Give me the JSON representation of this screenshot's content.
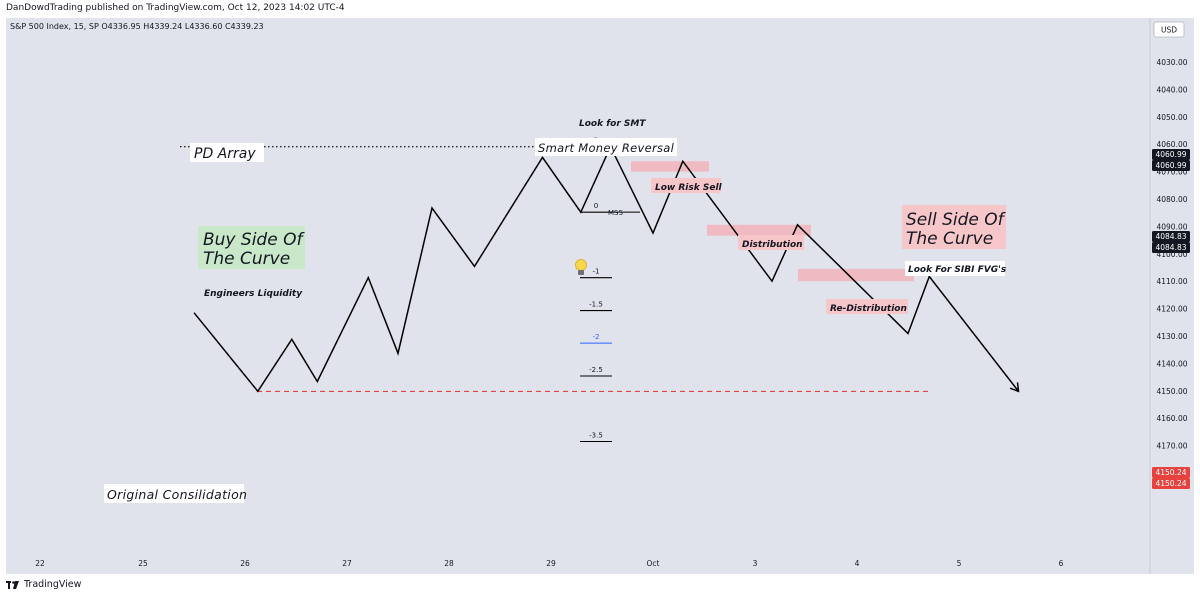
{
  "header": {
    "publisher": "DanDowdTrading published on TradingView.com, Oct 12, 2023 14:02 UTC-4",
    "symbol_line": "S&P 500 Index, 15, SP  O4336.95  H4339.24  L4336.60  C4339.23",
    "currency": "USD"
  },
  "footer": {
    "brand": "TradingView"
  },
  "colors": {
    "plot_bg": "#e0e3eb",
    "line": "#000000",
    "zone": "#f2b3bb",
    "red": "#e8423f",
    "green_box": "#c9e8c9",
    "pink_box": "#f7c6c9",
    "price_tag": "#131722",
    "blue": "#2962ff"
  },
  "chart_data": {
    "type": "line",
    "x_ticks": [
      "22",
      "25",
      "26",
      "27",
      "28",
      "29",
      "Oct",
      "3",
      "4",
      "5",
      "6"
    ],
    "y_ticks": [
      "4030.00",
      "4040.00",
      "4050.00",
      "4060.00",
      "4070.00",
      "4080.00",
      "4090.00",
      "4100.00",
      "4110.00",
      "4120.00",
      "4130.00",
      "4140.00",
      "4150.00",
      "4160.00",
      "4170.00"
    ],
    "y_axis_note": "inverted price scale (higher values lower on chart)",
    "ylim": [
      4025,
      4175
    ],
    "path": [
      [
        "Sep 25 12:00",
        4121.5
      ],
      [
        "Sep 26 03:00",
        4150.2
      ],
      [
        "Sep 26 11:00",
        4131.2
      ],
      [
        "Sep 26 17:00",
        4146.6
      ],
      [
        "Sep 27 05:00",
        4108.7
      ],
      [
        "Sep 27 12:00",
        4136.3
      ],
      [
        "Sep 27 20:00",
        4083.3
      ],
      [
        "Sep 28 06:00",
        4104.6
      ],
      [
        "Sep 28 22:00",
        4064.8
      ],
      [
        "Sep 29 07:00",
        4084.8
      ],
      [
        "Sep 29 14:00",
        4060.9
      ],
      [
        "Oct 1 00:00",
        4092.4
      ],
      [
        "Oct 1 07:00",
        4066.2
      ],
      [
        "Oct 2 04:00",
        4110.0
      ],
      [
        "Oct 2 10:00",
        4089.4
      ],
      [
        "Oct 3 12:00",
        4129.1
      ],
      [
        "Oct 3 17:00",
        4108.3
      ],
      [
        "Oct 4 14:00",
        4150.2
      ]
    ],
    "price_tags": [
      {
        "label": "4060.99",
        "value": 4060.99,
        "style": "dark"
      },
      {
        "label": "4060.99",
        "value": 4060.99,
        "style": "dark"
      },
      {
        "label": "4084.83",
        "value": 4084.83,
        "style": "dark"
      },
      {
        "label": "4084.83",
        "value": 4084.83,
        "style": "dark"
      },
      {
        "label": "4150.24",
        "value": 4150.24,
        "style": "red"
      },
      {
        "label": "4150.24",
        "value": 4150.24,
        "style": "red"
      }
    ],
    "fib_levels": [
      {
        "label": "1",
        "value": 4060.9
      },
      {
        "label": "0",
        "value": 4084.8
      },
      {
        "label": "-1",
        "value": 4108.7
      },
      {
        "label": "-1.5",
        "value": 4120.7
      },
      {
        "label": "-2",
        "value": 4132.6,
        "color": "blue"
      },
      {
        "label": "-2.5",
        "value": 4144.6
      },
      {
        "label": "-3.5",
        "value": 4168.5
      }
    ],
    "mss_label": "MSS",
    "zones": [
      {
        "name": "Low Risk Sell",
        "top": 4066.2,
        "bottom": 4070.0
      },
      {
        "name": "Distribution",
        "top": 4089.4,
        "bottom": 4093.4
      },
      {
        "name": "Re-Distribution",
        "top": 4105.5,
        "bottom": 4110.0
      }
    ],
    "annotations": {
      "pd_array": "PD Array",
      "smart_money": "Smart Money Reversal",
      "look_smt": "Look for SMT",
      "low_risk": "Low Risk Sell",
      "distribution": "Distribution",
      "re_distribution": "Re-Distribution",
      "buy_side": [
        "Buy Side Of",
        "The Curve"
      ],
      "engineers": "Engineers Liquidity",
      "sell_side": [
        "Sell Side Of",
        "The Curve"
      ],
      "look_sibi": "Look For SIBI FVG's",
      "original": "Original Consilidation"
    },
    "grid": false
  }
}
